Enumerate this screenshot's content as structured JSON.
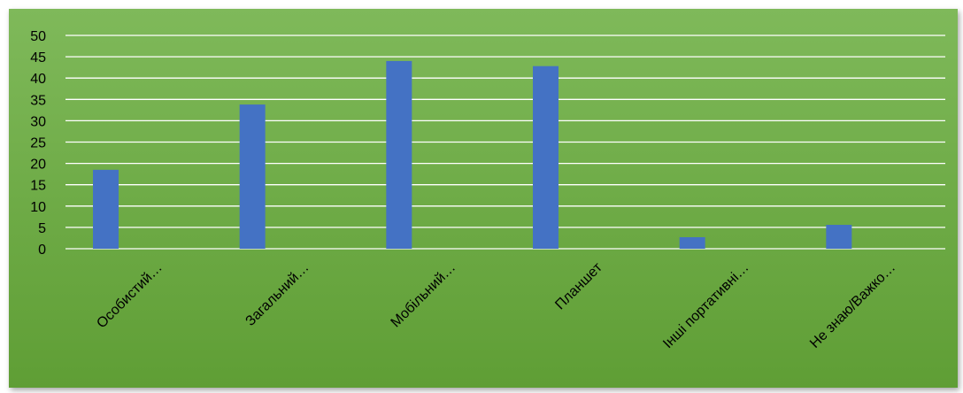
{
  "chart_data": {
    "type": "bar",
    "categories": [
      "Особистий…",
      "Загальний…",
      "Мобільний…",
      "Планшет",
      "Інші портативні…",
      "Не знаю/Важко…"
    ],
    "values": [
      18.5,
      33.8,
      44,
      42.8,
      2.7,
      5.6
    ],
    "ylim": [
      0,
      50
    ],
    "yticks": [
      0,
      5,
      10,
      15,
      20,
      25,
      30,
      35,
      40,
      45,
      50
    ],
    "grid": true,
    "legend": "none",
    "title": "",
    "xlabel": "",
    "ylabel": "",
    "colors": {
      "bar": "#4472c4",
      "background": "#70ad47",
      "grid": "#ffffff"
    }
  }
}
